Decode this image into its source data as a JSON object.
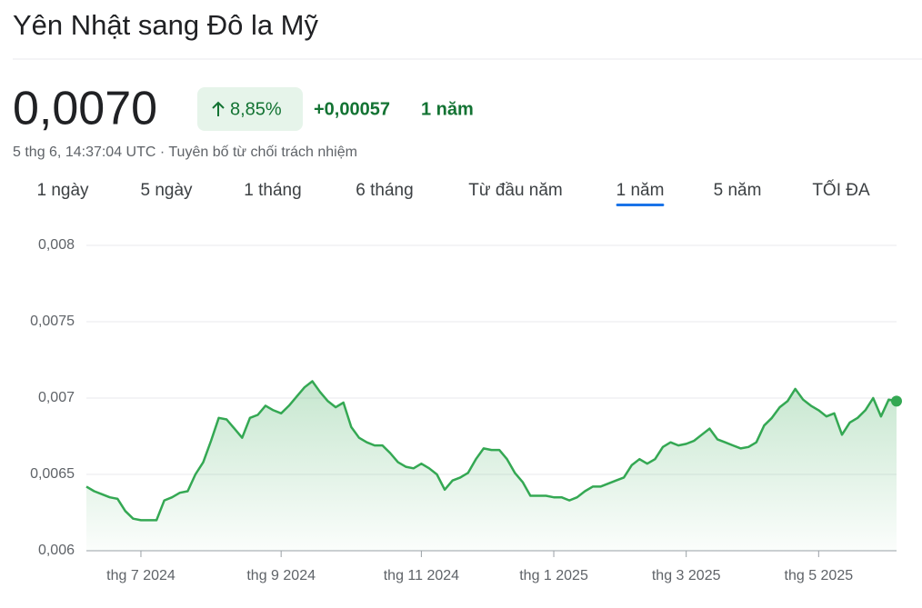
{
  "header": {
    "title": "Yên Nhật sang Đô la Mỹ",
    "price": "0,0070",
    "change_percent": "8,85%",
    "change_value": "+0,00057",
    "change_period": "1 năm",
    "timestamp": "5 thg 6, 14:37:04 UTC",
    "separator": "·",
    "disclaimer": "Tuyên bố từ chối trách nhiệm"
  },
  "tabs": {
    "items": [
      "1 ngày",
      "5 ngày",
      "1 tháng",
      "6 tháng",
      "Từ đầu năm",
      "1 năm",
      "5 năm",
      "TỐI ĐA"
    ],
    "active": 5
  },
  "chart_data": {
    "type": "line",
    "color": "#34a853",
    "grid": true,
    "ylim": [
      0.006,
      0.008
    ],
    "yticks": [
      {
        "value": 0.006,
        "label": "0,006"
      },
      {
        "value": 0.0065,
        "label": "0,0065"
      },
      {
        "value": 0.007,
        "label": "0,007"
      },
      {
        "value": 0.0075,
        "label": "0,0075"
      },
      {
        "value": 0.008,
        "label": "0,008"
      }
    ],
    "categories": [
      null,
      null,
      null,
      null,
      null,
      null,
      null,
      "thg 7 2024",
      null,
      null,
      null,
      null,
      null,
      null,
      null,
      null,
      null,
      null,
      null,
      null,
      null,
      null,
      null,
      null,
      null,
      "thg 9 2024",
      null,
      null,
      null,
      null,
      null,
      null,
      null,
      null,
      null,
      null,
      null,
      null,
      null,
      null,
      null,
      null,
      null,
      "thg 11 2024",
      null,
      null,
      null,
      null,
      null,
      null,
      null,
      null,
      null,
      null,
      null,
      null,
      null,
      null,
      null,
      null,
      "thg 1 2025",
      null,
      null,
      null,
      null,
      null,
      null,
      null,
      null,
      null,
      null,
      null,
      null,
      null,
      null,
      null,
      null,
      "thg 3 2025",
      null,
      null,
      null,
      null,
      null,
      null,
      null,
      null,
      null,
      null,
      null,
      null,
      null,
      null,
      null,
      null,
      "thg 5 2025",
      null,
      null,
      null,
      null,
      null,
      null,
      null,
      null,
      null,
      null
    ],
    "values": [
      0.00642,
      0.00639,
      0.00637,
      0.00635,
      0.00634,
      0.00626,
      0.00621,
      0.0062,
      0.0062,
      0.0062,
      0.00633,
      0.00635,
      0.00638,
      0.00639,
      0.0065,
      0.00658,
      0.00672,
      0.00687,
      0.00686,
      0.0068,
      0.00674,
      0.00687,
      0.00689,
      0.00695,
      0.00692,
      0.0069,
      0.00695,
      0.00701,
      0.00707,
      0.00711,
      0.00704,
      0.00698,
      0.00694,
      0.00697,
      0.00681,
      0.00674,
      0.00671,
      0.00669,
      0.00669,
      0.00664,
      0.00658,
      0.00655,
      0.00654,
      0.00657,
      0.00654,
      0.0065,
      0.0064,
      0.00646,
      0.00648,
      0.00651,
      0.0066,
      0.00667,
      0.00666,
      0.00666,
      0.0066,
      0.00651,
      0.00645,
      0.00636,
      0.00636,
      0.00636,
      0.00635,
      0.00635,
      0.00633,
      0.00635,
      0.00639,
      0.00642,
      0.00642,
      0.00644,
      0.00646,
      0.00648,
      0.00656,
      0.0066,
      0.00657,
      0.0066,
      0.00668,
      0.00671,
      0.00669,
      0.0067,
      0.00672,
      0.00676,
      0.0068,
      0.00673,
      0.00671,
      0.00669,
      0.00667,
      0.00668,
      0.00671,
      0.00682,
      0.00687,
      0.00694,
      0.00698,
      0.00706,
      0.00699,
      0.00695,
      0.00692,
      0.00688,
      0.0069,
      0.00676,
      0.00684,
      0.00687,
      0.00692,
      0.007,
      0.00688,
      0.00699,
      0.00698
    ]
  }
}
